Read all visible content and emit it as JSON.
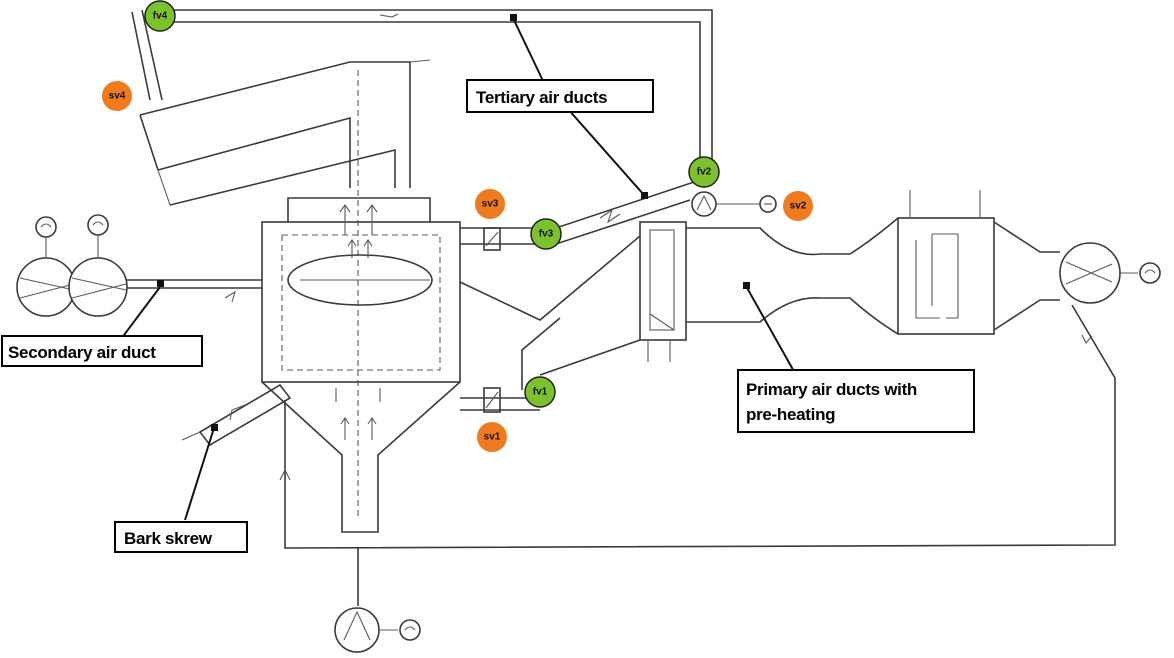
{
  "labels": {
    "tertiary": "Tertiary air ducts",
    "secondary": "Secondary air duct",
    "primary_line1": "Primary air ducts with",
    "primary_line2": "pre-heating",
    "bark": "Bark skrew"
  },
  "tags": {
    "green": [
      "fv1",
      "fv2",
      "fv3",
      "fv4"
    ],
    "orange": [
      "sv1",
      "sv2",
      "sv3",
      "sv4"
    ]
  },
  "colors": {
    "green_tag": "#7cc22e",
    "orange_tag": "#f07a1e",
    "line": "#3a3a3a"
  }
}
